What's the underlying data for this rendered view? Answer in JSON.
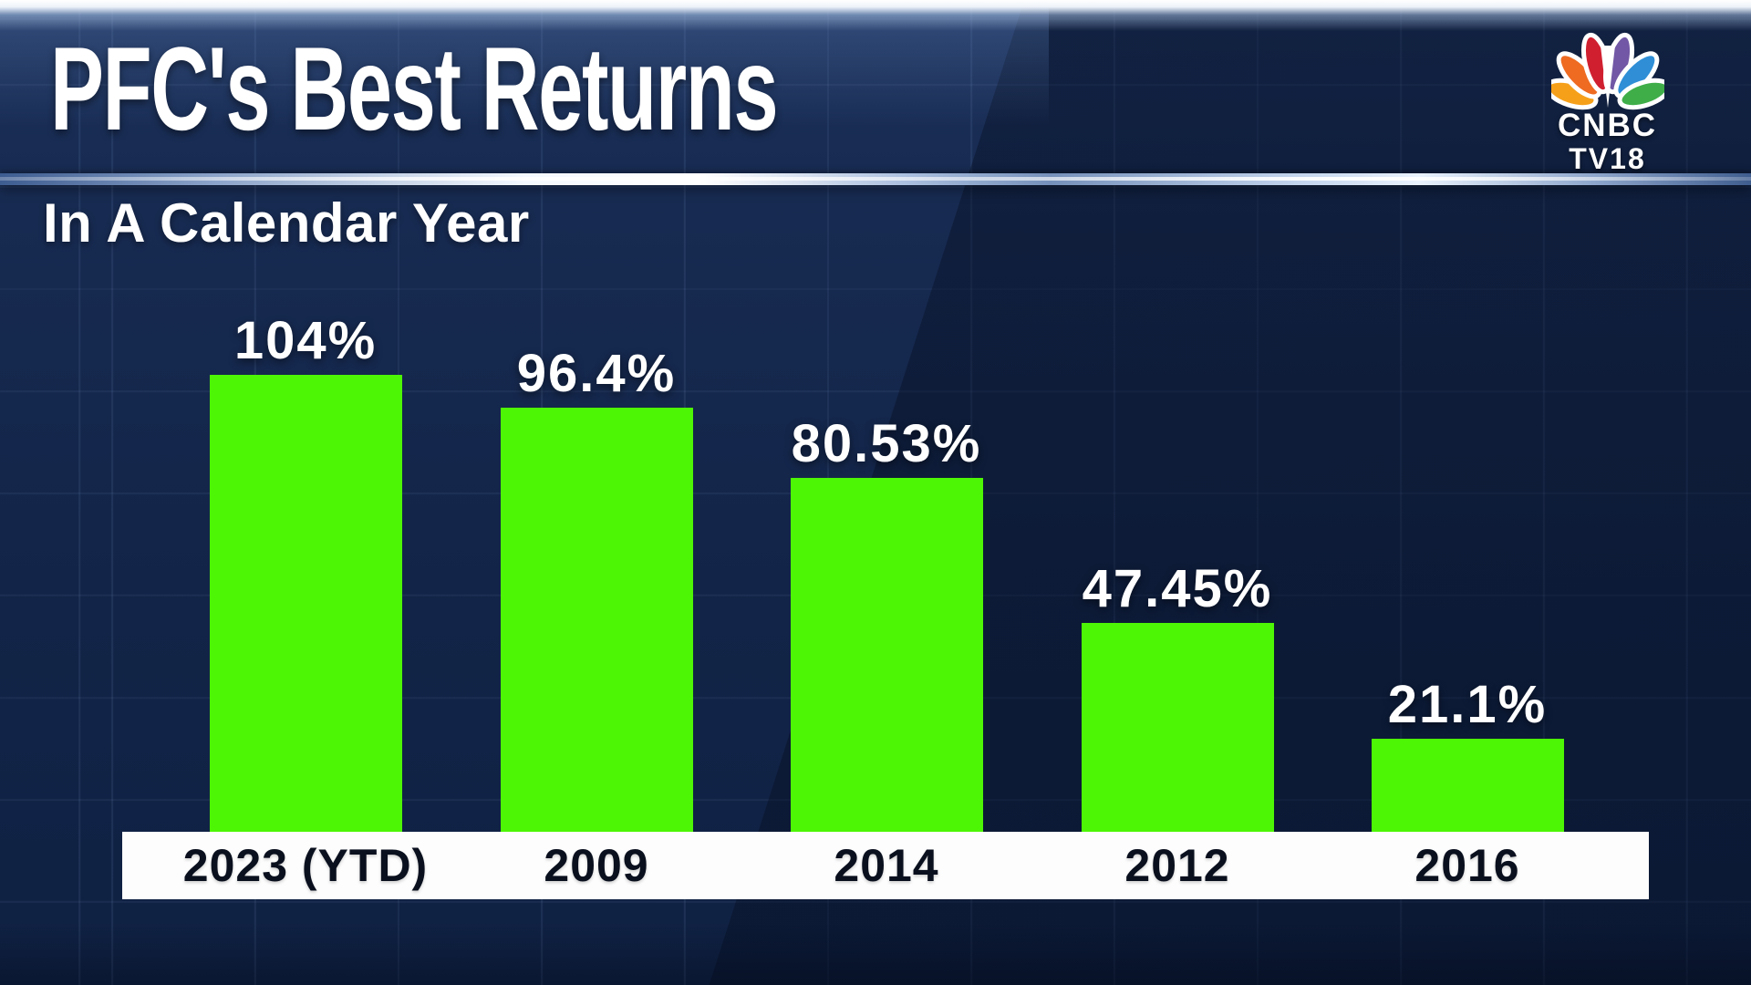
{
  "header": {
    "title": "PFC's Best Returns",
    "subtitle": "In A Calendar Year"
  },
  "logo": {
    "name": "cnbc-tv18-logo",
    "brand_line1": "CNBC",
    "brand_line2": "TV18",
    "peacock_colors": [
      "#f6a01a",
      "#ee6b21",
      "#d02030",
      "#7157a5",
      "#2f8ed6",
      "#3fae49"
    ]
  },
  "chart_data": {
    "type": "bar",
    "title": "PFC's Best Returns",
    "subtitle": "In A Calendar Year",
    "categories": [
      "2023 (YTD)",
      "2009",
      "2014",
      "2012",
      "2016"
    ],
    "values": [
      104,
      96.4,
      80.53,
      47.45,
      21.1
    ],
    "value_labels": [
      "104%",
      "96.4%",
      "80.53%",
      "47.45%",
      "21.1%"
    ],
    "unit": "percent return",
    "ylim": [
      0,
      110
    ],
    "legend": "none",
    "grid": "faint square grid on dark navy background",
    "bar_color": "#4df604",
    "value_label_color": "#ffffff",
    "axis_band_color": "#fdfdfd",
    "category_text_color": "#0a101e",
    "background_color": "#13254a"
  }
}
